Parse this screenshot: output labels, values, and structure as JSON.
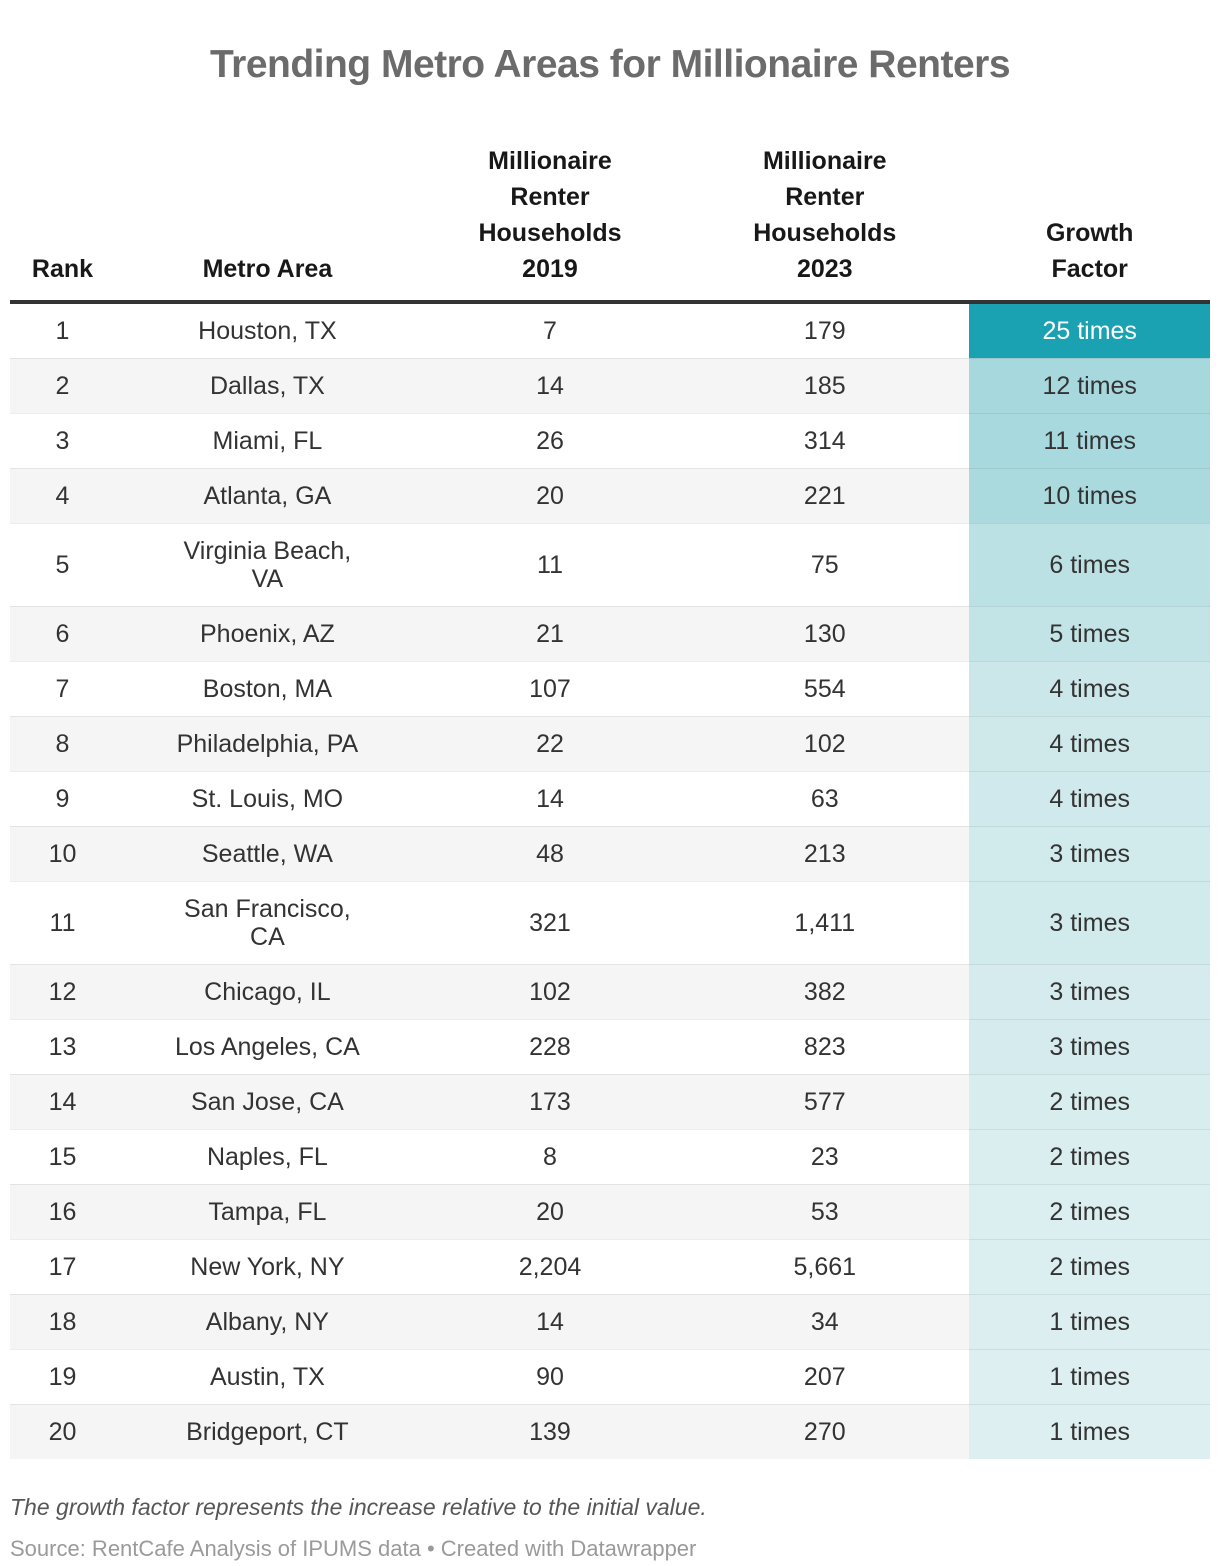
{
  "title": "Trending Metro Areas for Millionaire Renters",
  "table": {
    "headers": [
      {
        "id": "rank",
        "label": "Rank"
      },
      {
        "id": "metro",
        "label": "Metro Area"
      },
      {
        "id": "hh2019",
        "label": "Millionaire\nRenter\nHouseholds\n2019"
      },
      {
        "id": "hh2023",
        "label": "Millionaire\nRenter\nHouseholds\n2023"
      },
      {
        "id": "growth",
        "label": "Growth\nFactor"
      }
    ],
    "rows": [
      {
        "rank": "1",
        "metro": "Houston, TX",
        "hh2019": "7",
        "hh2023": "179",
        "growth": "25 times",
        "growth_bg": "#1aa2b2",
        "growth_text": "#ffffff"
      },
      {
        "rank": "2",
        "metro": "Dallas, TX",
        "hh2019": "14",
        "hh2023": "185",
        "growth": "12 times",
        "growth_bg": "#a6d8dd",
        "growth_text": "#333333"
      },
      {
        "rank": "3",
        "metro": "Miami, FL",
        "hh2019": "26",
        "hh2023": "314",
        "growth": "11 times",
        "growth_bg": "#a8d9de",
        "growth_text": "#333333"
      },
      {
        "rank": "4",
        "metro": "Atlanta, GA",
        "hh2019": "20",
        "hh2023": "221",
        "growth": "10 times",
        "growth_bg": "#aadade",
        "growth_text": "#333333"
      },
      {
        "rank": "5",
        "metro": "Virginia Beach,\nVA",
        "hh2019": "11",
        "hh2023": "75",
        "growth": "6 times",
        "growth_bg": "#bce1e5",
        "growth_text": "#333333"
      },
      {
        "rank": "6",
        "metro": "Phoenix, AZ",
        "hh2019": "21",
        "hh2023": "130",
        "growth": "5 times",
        "growth_bg": "#c3e4e7",
        "growth_text": "#333333"
      },
      {
        "rank": "7",
        "metro": "Boston, MA",
        "hh2019": "107",
        "hh2023": "554",
        "growth": "4 times",
        "growth_bg": "#cbe7ea",
        "growth_text": "#333333"
      },
      {
        "rank": "8",
        "metro": "Philadelphia, PA",
        "hh2019": "22",
        "hh2023": "102",
        "growth": "4 times",
        "growth_bg": "#cfe9eb",
        "growth_text": "#333333"
      },
      {
        "rank": "9",
        "metro": "St. Louis, MO",
        "hh2019": "14",
        "hh2023": "63",
        "growth": "4 times",
        "growth_bg": "#d0e9ec",
        "growth_text": "#333333"
      },
      {
        "rank": "10",
        "metro": "Seattle, WA",
        "hh2019": "48",
        "hh2023": "213",
        "growth": "3 times",
        "growth_bg": "#d1eaec",
        "growth_text": "#333333"
      },
      {
        "rank": "11",
        "metro": "San Francisco,\nCA",
        "hh2019": "321",
        "hh2023": "1,411",
        "growth": "3 times",
        "growth_bg": "#d1eaec",
        "growth_text": "#333333"
      },
      {
        "rank": "12",
        "metro": "Chicago, IL",
        "hh2019": "102",
        "hh2023": "382",
        "growth": "3 times",
        "growth_bg": "#d5ebee",
        "growth_text": "#333333"
      },
      {
        "rank": "13",
        "metro": "Los Angeles, CA",
        "hh2019": "228",
        "hh2023": "823",
        "growth": "3 times",
        "growth_bg": "#d5ebee",
        "growth_text": "#333333"
      },
      {
        "rank": "14",
        "metro": "San Jose, CA",
        "hh2019": "173",
        "hh2023": "577",
        "growth": "2 times",
        "growth_bg": "#d8edee",
        "growth_text": "#333333"
      },
      {
        "rank": "15",
        "metro": "Naples, FL",
        "hh2019": "8",
        "hh2023": "23",
        "growth": "2 times",
        "growth_bg": "#daedef",
        "growth_text": "#333333"
      },
      {
        "rank": "16",
        "metro": "Tampa, FL",
        "hh2019": "20",
        "hh2023": "53",
        "growth": "2 times",
        "growth_bg": "#dbeef0",
        "growth_text": "#333333"
      },
      {
        "rank": "17",
        "metro": "New York, NY",
        "hh2019": "2,204",
        "hh2023": "5,661",
        "growth": "2 times",
        "growth_bg": "#dbeef0",
        "growth_text": "#333333"
      },
      {
        "rank": "18",
        "metro": "Albany, NY",
        "hh2019": "14",
        "hh2023": "34",
        "growth": "1 times",
        "growth_bg": "#dceef0",
        "growth_text": "#333333"
      },
      {
        "rank": "19",
        "metro": "Austin, TX",
        "hh2019": "90",
        "hh2023": "207",
        "growth": "1 times",
        "growth_bg": "#ddeff0",
        "growth_text": "#333333"
      },
      {
        "rank": "20",
        "metro": "Bridgeport, CT",
        "hh2019": "139",
        "hh2023": "270",
        "growth": "1 times",
        "growth_bg": "#deeff1",
        "growth_text": "#333333"
      }
    ]
  },
  "footnote": "The growth factor represents the increase relative to the initial value.",
  "source": "Source: RentCafe Analysis of IPUMS data • Created with Datawrapper",
  "colors": {
    "title_text": "#6b6b6b",
    "header_text": "#181818",
    "body_text": "#333333",
    "row_stripe": "#f5f5f5",
    "header_rule": "#333333",
    "accent_dark_teal": "#1aa2b2",
    "accent_light_teal": "#d5ebee"
  },
  "chart_data": {
    "type": "table",
    "title": "Trending Metro Areas for Millionaire Renters",
    "columns": [
      "Rank",
      "Metro Area",
      "Millionaire Renter Households 2019",
      "Millionaire Renter Households 2023",
      "Growth Factor"
    ],
    "rows": [
      [
        1,
        "Houston, TX",
        7,
        179,
        "25 times"
      ],
      [
        2,
        "Dallas, TX",
        14,
        185,
        "12 times"
      ],
      [
        3,
        "Miami, FL",
        26,
        314,
        "11 times"
      ],
      [
        4,
        "Atlanta, GA",
        20,
        221,
        "10 times"
      ],
      [
        5,
        "Virginia Beach, VA",
        11,
        75,
        "6 times"
      ],
      [
        6,
        "Phoenix, AZ",
        21,
        130,
        "5 times"
      ],
      [
        7,
        "Boston, MA",
        107,
        554,
        "4 times"
      ],
      [
        8,
        "Philadelphia, PA",
        22,
        102,
        "4 times"
      ],
      [
        9,
        "St. Louis, MO",
        14,
        63,
        "4 times"
      ],
      [
        10,
        "Seattle, WA",
        48,
        213,
        "3 times"
      ],
      [
        11,
        "San Francisco, CA",
        321,
        1411,
        "3 times"
      ],
      [
        12,
        "Chicago, IL",
        102,
        382,
        "3 times"
      ],
      [
        13,
        "Los Angeles, CA",
        228,
        823,
        "3 times"
      ],
      [
        14,
        "San Jose, CA",
        173,
        577,
        "2 times"
      ],
      [
        15,
        "Naples, FL",
        8,
        23,
        "2 times"
      ],
      [
        16,
        "Tampa, FL",
        20,
        53,
        "2 times"
      ],
      [
        17,
        "New York, NY",
        2204,
        5661,
        "2 times"
      ],
      [
        18,
        "Albany, NY",
        14,
        34,
        "1 times"
      ],
      [
        19,
        "Austin, TX",
        90,
        207,
        "1 times"
      ],
      [
        20,
        "Bridgeport, CT",
        139,
        270,
        "1 times"
      ]
    ],
    "notes": "Growth Factor column is color-scaled from dark teal (highest) to pale teal (lowest); legend/grid not present."
  }
}
